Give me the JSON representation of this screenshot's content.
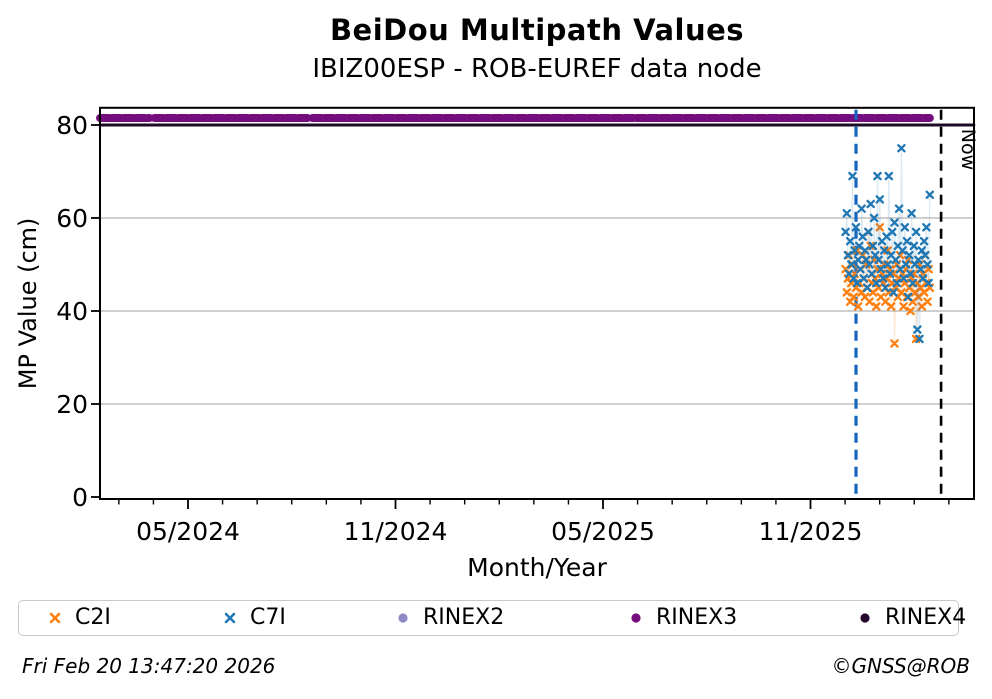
{
  "footer": {
    "timestamp": "Fri Feb 20 13:47:20 2026",
    "credit": "©GNSS@ROB"
  },
  "chart_data": {
    "type": "scatter",
    "title": "BeiDou Multipath Values",
    "subtitle": "IBIZ00ESP - ROB-EUREF data node",
    "xlabel": "Month/Year",
    "ylabel": "MP Value (cm)",
    "x_axis": {
      "unit": "decimal_year",
      "min": 2024.121,
      "max": 2026.227,
      "major_ticks": [
        {
          "t": 2024.3333,
          "label": "05/2024"
        },
        {
          "t": 2024.8333,
          "label": "11/2024"
        },
        {
          "t": 2025.3333,
          "label": "05/2025"
        },
        {
          "t": 2025.8333,
          "label": "11/2025"
        }
      ],
      "minor_tick_interval_months": 1
    },
    "y_axis": {
      "min": 0,
      "max": 83.7,
      "ticks": [
        0,
        20,
        40,
        60,
        80
      ]
    },
    "grid": {
      "horizontal": true,
      "vertical": false,
      "color": "#b2b2b2"
    },
    "reference_lines": [
      {
        "name": "rinex3-track",
        "kind": "horizontal-track",
        "value": 81.5,
        "color": "#740d7e",
        "style": "dotted",
        "thickness": 8,
        "segments": [
          [
            2024.121,
            2024.2405
          ],
          [
            2024.2525,
            2024.6213
          ],
          [
            2024.6333,
            2026.121
          ]
        ]
      },
      {
        "name": "rinex4-track",
        "kind": "horizontal-track",
        "value": 80,
        "color": "#1c0b26",
        "style": "solid",
        "thickness": 3,
        "segments": [
          [
            2024.121,
            2026.227
          ]
        ]
      },
      {
        "name": "data-start-line",
        "kind": "vertical",
        "t": 2025.943,
        "color": "#1565c0",
        "style": "dashed",
        "label": ""
      },
      {
        "name": "now-line",
        "kind": "vertical",
        "t": 2026.148,
        "color": "#000000",
        "style": "dashed",
        "label": "Now"
      }
    ],
    "series": [
      {
        "name": "C2I",
        "color": "#ff7f0e",
        "marker": "x",
        "t_start": 2025.918,
        "t_step": 0.00274,
        "values": [
          49,
          44,
          47,
          52,
          42,
          46,
          50,
          43,
          48,
          45,
          53,
          41,
          46,
          49,
          44,
          52,
          47,
          43,
          50,
          45,
          57,
          42,
          54,
          46,
          44,
          51,
          47,
          41,
          49,
          45,
          58,
          43,
          48,
          46,
          50,
          42,
          47,
          53,
          44,
          49,
          41,
          46,
          48,
          33,
          45,
          50,
          43,
          47,
          52,
          44,
          48,
          41,
          46,
          49,
          43,
          51,
          45,
          40,
          47,
          42,
          48,
          44,
          34,
          46,
          43,
          50,
          45,
          41,
          48,
          44,
          52,
          46,
          42,
          49,
          45
        ]
      },
      {
        "name": "C7I",
        "color": "#1f77b4",
        "marker": "x",
        "t_start": 2025.918,
        "t_step": 0.00274,
        "values": [
          57,
          61,
          52,
          48,
          55,
          50,
          69,
          47,
          53,
          58,
          46,
          51,
          54,
          49,
          62,
          56,
          47,
          53,
          51,
          45,
          57,
          50,
          63,
          48,
          54,
          60,
          52,
          46,
          69,
          51,
          64,
          49,
          55,
          47,
          53,
          45,
          56,
          50,
          69,
          48,
          52,
          57,
          44,
          59,
          51,
          46,
          54,
          62,
          49,
          75,
          53,
          47,
          58,
          50,
          55,
          43,
          52,
          48,
          61,
          46,
          54,
          50,
          57,
          36,
          51,
          34,
          49,
          53,
          47,
          55,
          52,
          58,
          50,
          46,
          65
        ]
      }
    ],
    "legend": {
      "position": "bottom",
      "items": [
        {
          "label": "C2I",
          "color": "#ff7f0e",
          "marker": "x"
        },
        {
          "label": "C7I",
          "color": "#1f77b4",
          "marker": "x"
        },
        {
          "label": "RINEX2",
          "color": "#8e8ac5",
          "marker": "circle"
        },
        {
          "label": "RINEX3",
          "color": "#740d7e",
          "marker": "circle"
        },
        {
          "label": "RINEX4",
          "color": "#26082f",
          "marker": "circle"
        }
      ]
    }
  }
}
